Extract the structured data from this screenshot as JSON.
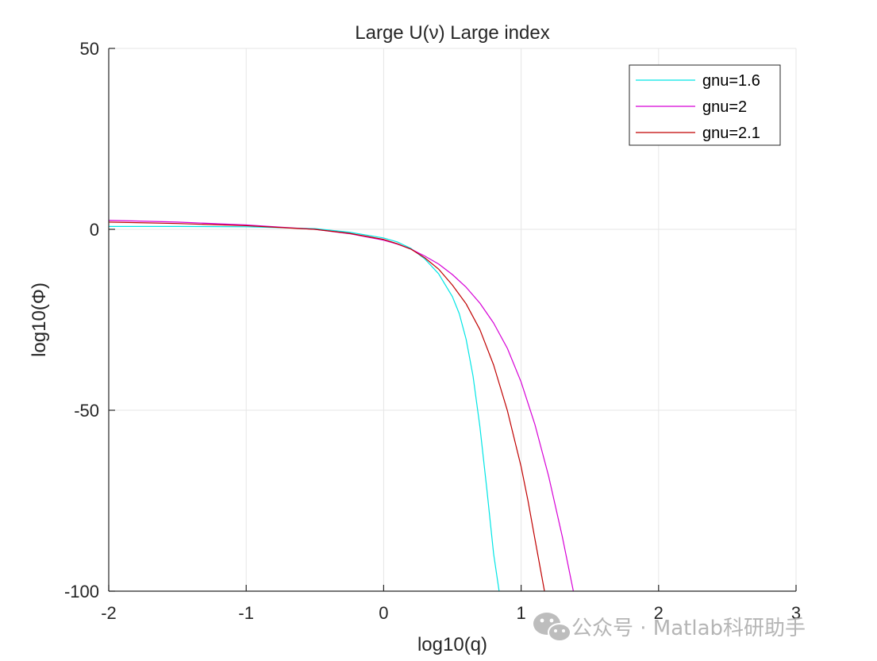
{
  "chart_data": {
    "type": "line",
    "title": "Large U(ν) Large index",
    "xlabel": "log10(q)",
    "ylabel": "log10(Φ)",
    "xlim": [
      -2,
      3
    ],
    "ylim": [
      -100,
      50
    ],
    "xticks": [
      -2,
      -1,
      0,
      1,
      2,
      3
    ],
    "yticks": [
      -100,
      -50,
      0,
      50
    ],
    "xtick_labels": [
      "-2",
      "-1",
      "0",
      "1",
      "2",
      "3"
    ],
    "ytick_labels": [
      "-100",
      "-50",
      "0",
      "50"
    ],
    "grid": true,
    "legend_position": "top-right",
    "series": [
      {
        "name": "gnu=1.6",
        "color": "#00e5e5",
        "x": [
          -2,
          -1.5,
          -1,
          -0.5,
          -0.25,
          0,
          0.1,
          0.2,
          0.3,
          0.4,
          0.5,
          0.55,
          0.6,
          0.65,
          0.7,
          0.75,
          0.8,
          0.84
        ],
        "y": [
          0.8,
          0.8,
          0.7,
          0.2,
          -0.8,
          -2.4,
          -3.5,
          -5.3,
          -8.2,
          -12.3,
          -18.6,
          -23.3,
          -30.4,
          -40.5,
          -54.5,
          -71.6,
          -89.7,
          -100
        ]
      },
      {
        "name": "gnu=2",
        "color": "#d600d6",
        "x": [
          -2,
          -1.5,
          -1,
          -0.5,
          -0.25,
          0,
          0.1,
          0.2,
          0.3,
          0.4,
          0.5,
          0.6,
          0.7,
          0.8,
          0.9,
          1.0,
          1.1,
          1.2,
          1.3,
          1.38
        ],
        "y": [
          2.5,
          2.0,
          1.2,
          0.0,
          -1.2,
          -3.0,
          -4.1,
          -5.5,
          -7.4,
          -9.6,
          -12.5,
          -16.0,
          -20.4,
          -25.9,
          -32.9,
          -42.2,
          -53.9,
          -68.2,
          -85.0,
          -100
        ]
      },
      {
        "name": "gnu=2.1",
        "color": "#c00000",
        "x": [
          -2,
          -1.5,
          -1,
          -0.5,
          -0.25,
          0,
          0.1,
          0.2,
          0.3,
          0.4,
          0.5,
          0.6,
          0.7,
          0.8,
          0.9,
          1.0,
          1.05,
          1.1,
          1.17
        ],
        "y": [
          2.0,
          1.6,
          1.0,
          0.0,
          -1.1,
          -2.8,
          -4.0,
          -5.5,
          -7.9,
          -11.0,
          -15.4,
          -20.6,
          -27.7,
          -37.5,
          -50.1,
          -65.6,
          -75.0,
          -85.5,
          -100
        ]
      }
    ]
  },
  "watermark": {
    "icon": "wechat-icon",
    "text": "公众号 · Matlab科研助手"
  }
}
